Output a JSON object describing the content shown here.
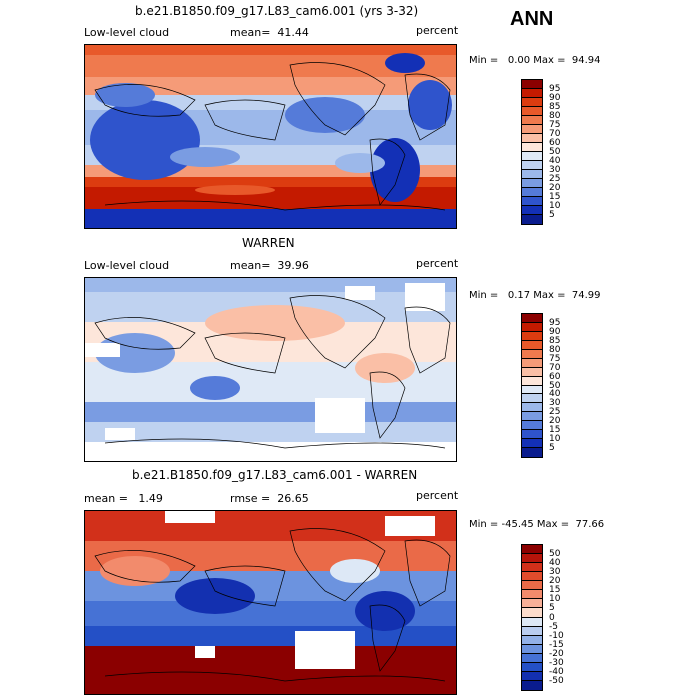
{
  "season": "ANN",
  "panels": [
    {
      "title": "b.e21.B1850.f09_g17.L83_cam6.001 (yrs 3-32)",
      "left_label": "Low-level cloud",
      "mean_text": "mean=  41.44",
      "units": "percent",
      "min_max": "Min =   0.00 Max =  94.94",
      "colorbar": {
        "labels": [
          "95",
          "90",
          "85",
          "80",
          "75",
          "70",
          "60",
          "50",
          "40",
          "30",
          "25",
          "20",
          "15",
          "10",
          "5"
        ],
        "colors": [
          "#8b0000",
          "#c41a00",
          "#dc3c10",
          "#e8592a",
          "#ef7a4e",
          "#f59b78",
          "#fabfa6",
          "#fde6da",
          "#dfe9f6",
          "#bfd2f0",
          "#9cb8ea",
          "#7a9ce2",
          "#557bd9",
          "#2f54cc",
          "#1330b6",
          "#0a1c8e"
        ]
      }
    },
    {
      "title": "WARREN",
      "left_label": "Low-level cloud",
      "mean_text": "mean=  39.96",
      "units": "percent",
      "min_max": "Min =   0.17 Max =  74.99",
      "colorbar": {
        "labels": [
          "95",
          "90",
          "85",
          "80",
          "75",
          "70",
          "60",
          "50",
          "40",
          "30",
          "25",
          "20",
          "15",
          "10",
          "5"
        ],
        "colors": [
          "#8b0000",
          "#c41a00",
          "#dc3c10",
          "#e8592a",
          "#ef7a4e",
          "#f59b78",
          "#fabfa6",
          "#fde6da",
          "#dfe9f6",
          "#bfd2f0",
          "#9cb8ea",
          "#7a9ce2",
          "#557bd9",
          "#2f54cc",
          "#1330b6",
          "#0a1c8e"
        ]
      }
    },
    {
      "title": "b.e21.B1850.f09_g17.L83_cam6.001 - WARREN",
      "left_label": "mean =   1.49",
      "mean_text": "rmse =  26.65",
      "units": "percent",
      "min_max": "Min = -45.45 Max =  77.66",
      "colorbar": {
        "labels": [
          "50",
          "40",
          "30",
          "20",
          "15",
          "10",
          "5",
          "0",
          "-5",
          "-10",
          "-15",
          "-20",
          "-30",
          "-40",
          "-50"
        ],
        "colors": [
          "#8b0000",
          "#b5140a",
          "#d2301a",
          "#e04c2c",
          "#ea6a48",
          "#f28b6c",
          "#f8b098",
          "#fcdccc",
          "#dde8f6",
          "#b9cdf0",
          "#92b1e8",
          "#6c93df",
          "#4672d5",
          "#2450c6",
          "#1330b0",
          "#0a1c8e"
        ]
      }
    }
  ]
}
